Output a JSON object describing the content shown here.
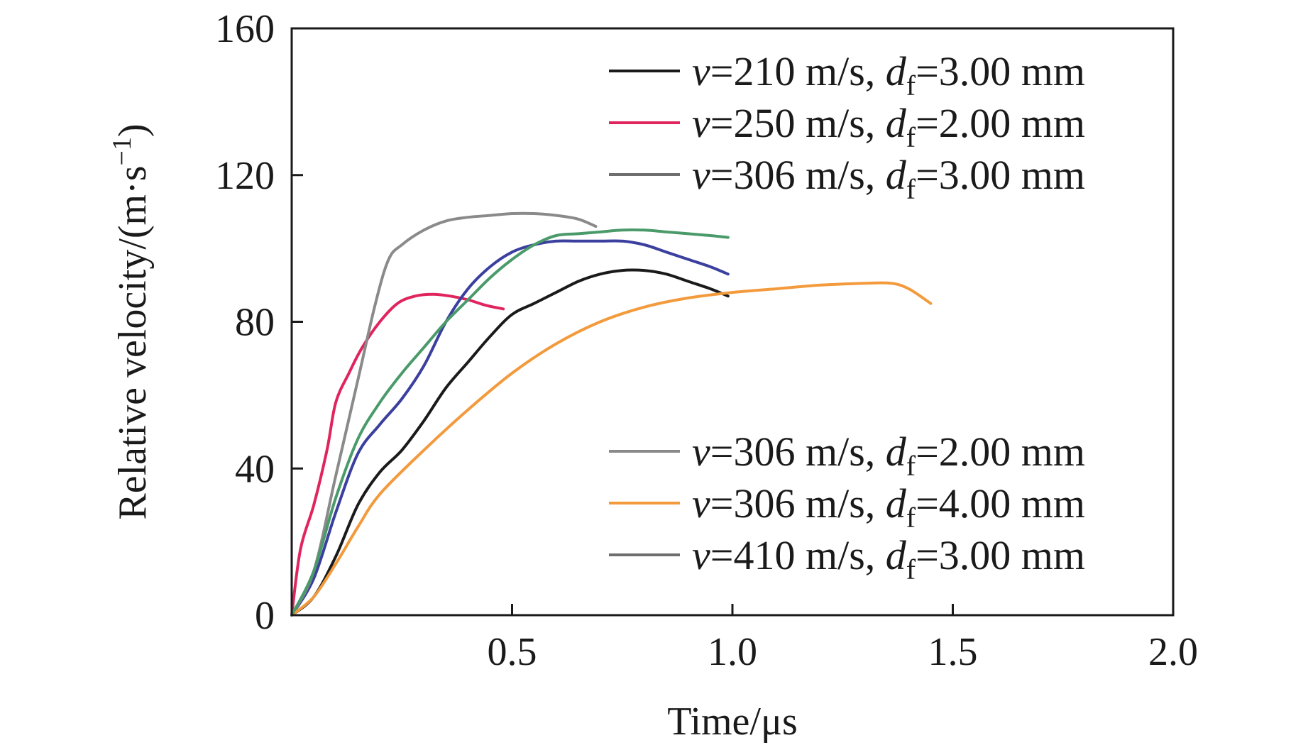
{
  "chart_data": {
    "type": "line",
    "title": "",
    "xlabel": "Time/μs",
    "ylabel": {
      "main": "Relative velocity/(m·s",
      "superscript": "−1",
      "close": ")"
    },
    "xlim": [
      0,
      2.0
    ],
    "ylim": [
      0,
      160
    ],
    "x_ticks": [
      {
        "value": 0.5,
        "label": "0.5"
      },
      {
        "value": 1.0,
        "label": "1.0"
      },
      {
        "value": 1.5,
        "label": "1.5"
      },
      {
        "value": 2.0,
        "label": "2.0"
      }
    ],
    "y_ticks": [
      {
        "value": 0,
        "label": "0"
      },
      {
        "value": 40,
        "label": "40"
      },
      {
        "value": 80,
        "label": "80"
      },
      {
        "value": 120,
        "label": "120"
      },
      {
        "value": 160,
        "label": "160"
      }
    ],
    "grid": false,
    "legend_placement": [
      "top-right",
      "bottom-right"
    ],
    "series": [
      {
        "id": "s210-300",
        "name": {
          "v_sym": "v",
          "v_text": "=210 m/s, ",
          "d_sym": "d",
          "d_sub": "f",
          "d_text": "=3.00 mm"
        },
        "color": "#1a1a1a",
        "legend_group": "top",
        "points": [
          [
            0,
            0
          ],
          [
            0.05,
            5
          ],
          [
            0.1,
            16
          ],
          [
            0.15,
            30
          ],
          [
            0.2,
            39
          ],
          [
            0.25,
            45
          ],
          [
            0.3,
            53
          ],
          [
            0.35,
            62
          ],
          [
            0.4,
            69
          ],
          [
            0.45,
            76
          ],
          [
            0.5,
            82
          ],
          [
            0.55,
            85
          ],
          [
            0.6,
            88
          ],
          [
            0.65,
            91
          ],
          [
            0.7,
            93
          ],
          [
            0.75,
            94
          ],
          [
            0.8,
            94
          ],
          [
            0.85,
            93
          ],
          [
            0.9,
            91
          ],
          [
            0.95,
            89
          ],
          [
            0.99,
            87
          ]
        ]
      },
      {
        "id": "s250-200",
        "name": {
          "v_sym": "v",
          "v_text": "=250 m/s, ",
          "d_sym": "d",
          "d_sub": "f",
          "d_text": "=2.00 mm"
        },
        "color": "#e0245e",
        "legend_group": "top",
        "points": [
          [
            0,
            0
          ],
          [
            0.02,
            18
          ],
          [
            0.05,
            30
          ],
          [
            0.08,
            45
          ],
          [
            0.1,
            58
          ],
          [
            0.13,
            66
          ],
          [
            0.16,
            73
          ],
          [
            0.2,
            80
          ],
          [
            0.24,
            85
          ],
          [
            0.28,
            87
          ],
          [
            0.32,
            87.5
          ],
          [
            0.36,
            87
          ],
          [
            0.4,
            86
          ],
          [
            0.44,
            84.5
          ],
          [
            0.48,
            83.5
          ]
        ]
      },
      {
        "id": "s306-300",
        "name": {
          "v_sym": "v",
          "v_text": "=306 m/s, ",
          "d_sym": "d",
          "d_sub": "f",
          "d_text": "=3.00 mm"
        },
        "color": "#3b3f9e",
        "legend_group": "top",
        "points": [
          [
            0,
            0
          ],
          [
            0.05,
            10
          ],
          [
            0.1,
            28
          ],
          [
            0.15,
            44
          ],
          [
            0.2,
            52
          ],
          [
            0.25,
            59
          ],
          [
            0.3,
            68
          ],
          [
            0.35,
            80
          ],
          [
            0.4,
            89
          ],
          [
            0.45,
            95
          ],
          [
            0.5,
            99
          ],
          [
            0.55,
            101
          ],
          [
            0.6,
            102
          ],
          [
            0.65,
            102
          ],
          [
            0.7,
            102
          ],
          [
            0.75,
            102
          ],
          [
            0.8,
            101
          ],
          [
            0.85,
            99
          ],
          [
            0.9,
            97
          ],
          [
            0.95,
            95
          ],
          [
            0.99,
            93
          ]
        ]
      },
      {
        "id": "s306-200",
        "name": {
          "v_sym": "v",
          "v_text": "=306 m/s, ",
          "d_sym": "d",
          "d_sub": "f",
          "d_text": "=2.00 mm"
        },
        "color": "#8a8a8a",
        "legend_group": "bottom",
        "points": [
          [
            0,
            0
          ],
          [
            0.05,
            12
          ],
          [
            0.1,
            38
          ],
          [
            0.15,
            64
          ],
          [
            0.19,
            85
          ],
          [
            0.22,
            97
          ],
          [
            0.25,
            101
          ],
          [
            0.3,
            105
          ],
          [
            0.35,
            107.5
          ],
          [
            0.4,
            108.5
          ],
          [
            0.45,
            109
          ],
          [
            0.5,
            109.5
          ],
          [
            0.55,
            109.5
          ],
          [
            0.6,
            109
          ],
          [
            0.65,
            108
          ],
          [
            0.69,
            106
          ]
        ]
      },
      {
        "id": "s306-400",
        "name": {
          "v_sym": "v",
          "v_text": "=306 m/s, ",
          "d_sym": "d",
          "d_sub": "f",
          "d_text": "=4.00 mm"
        },
        "color": "#f39a3c",
        "legend_group": "bottom",
        "points": [
          [
            0,
            0
          ],
          [
            0.05,
            5
          ],
          [
            0.1,
            14
          ],
          [
            0.15,
            24
          ],
          [
            0.2,
            33
          ],
          [
            0.3,
            45
          ],
          [
            0.4,
            56
          ],
          [
            0.5,
            66
          ],
          [
            0.6,
            74
          ],
          [
            0.7,
            80
          ],
          [
            0.8,
            84
          ],
          [
            0.9,
            86.5
          ],
          [
            1.0,
            88
          ],
          [
            1.1,
            89
          ],
          [
            1.2,
            90
          ],
          [
            1.3,
            90.5
          ],
          [
            1.36,
            90.5
          ],
          [
            1.4,
            89
          ],
          [
            1.45,
            85
          ]
        ]
      },
      {
        "id": "s410-300",
        "name": {
          "v_sym": "v",
          "v_text": "=410 m/s, ",
          "d_sym": "d",
          "d_sub": "f",
          "d_text": "=3.00 mm"
        },
        "color": "#4a9a6a",
        "overlay_color": "#6e6e6e",
        "legend_group": "bottom",
        "points": [
          [
            0,
            0
          ],
          [
            0.05,
            12
          ],
          [
            0.1,
            32
          ],
          [
            0.15,
            48
          ],
          [
            0.2,
            58
          ],
          [
            0.25,
            66
          ],
          [
            0.3,
            73
          ],
          [
            0.35,
            80
          ],
          [
            0.4,
            86
          ],
          [
            0.45,
            92
          ],
          [
            0.5,
            97
          ],
          [
            0.55,
            101
          ],
          [
            0.6,
            103.5
          ],
          [
            0.65,
            104
          ],
          [
            0.7,
            104.5
          ],
          [
            0.75,
            105
          ],
          [
            0.8,
            105
          ],
          [
            0.85,
            104.5
          ],
          [
            0.9,
            104
          ],
          [
            0.95,
            103.5
          ],
          [
            0.99,
            103
          ]
        ]
      }
    ],
    "legend_top": [
      "s210-300",
      "s250-200",
      "s306-300"
    ],
    "legend_bottom": [
      "s306-200",
      "s306-400",
      "s410-300"
    ],
    "legend_line_color": "#1a1a1a",
    "legend_line_colors": {
      "s210-300": "#1a1a1a",
      "s250-200": "#e0245e",
      "s306-300": "#6e6e6e",
      "s306-200": "#8a8a8a",
      "s306-400": "#f39a3c",
      "s410-300": "#6e6e6e"
    }
  }
}
